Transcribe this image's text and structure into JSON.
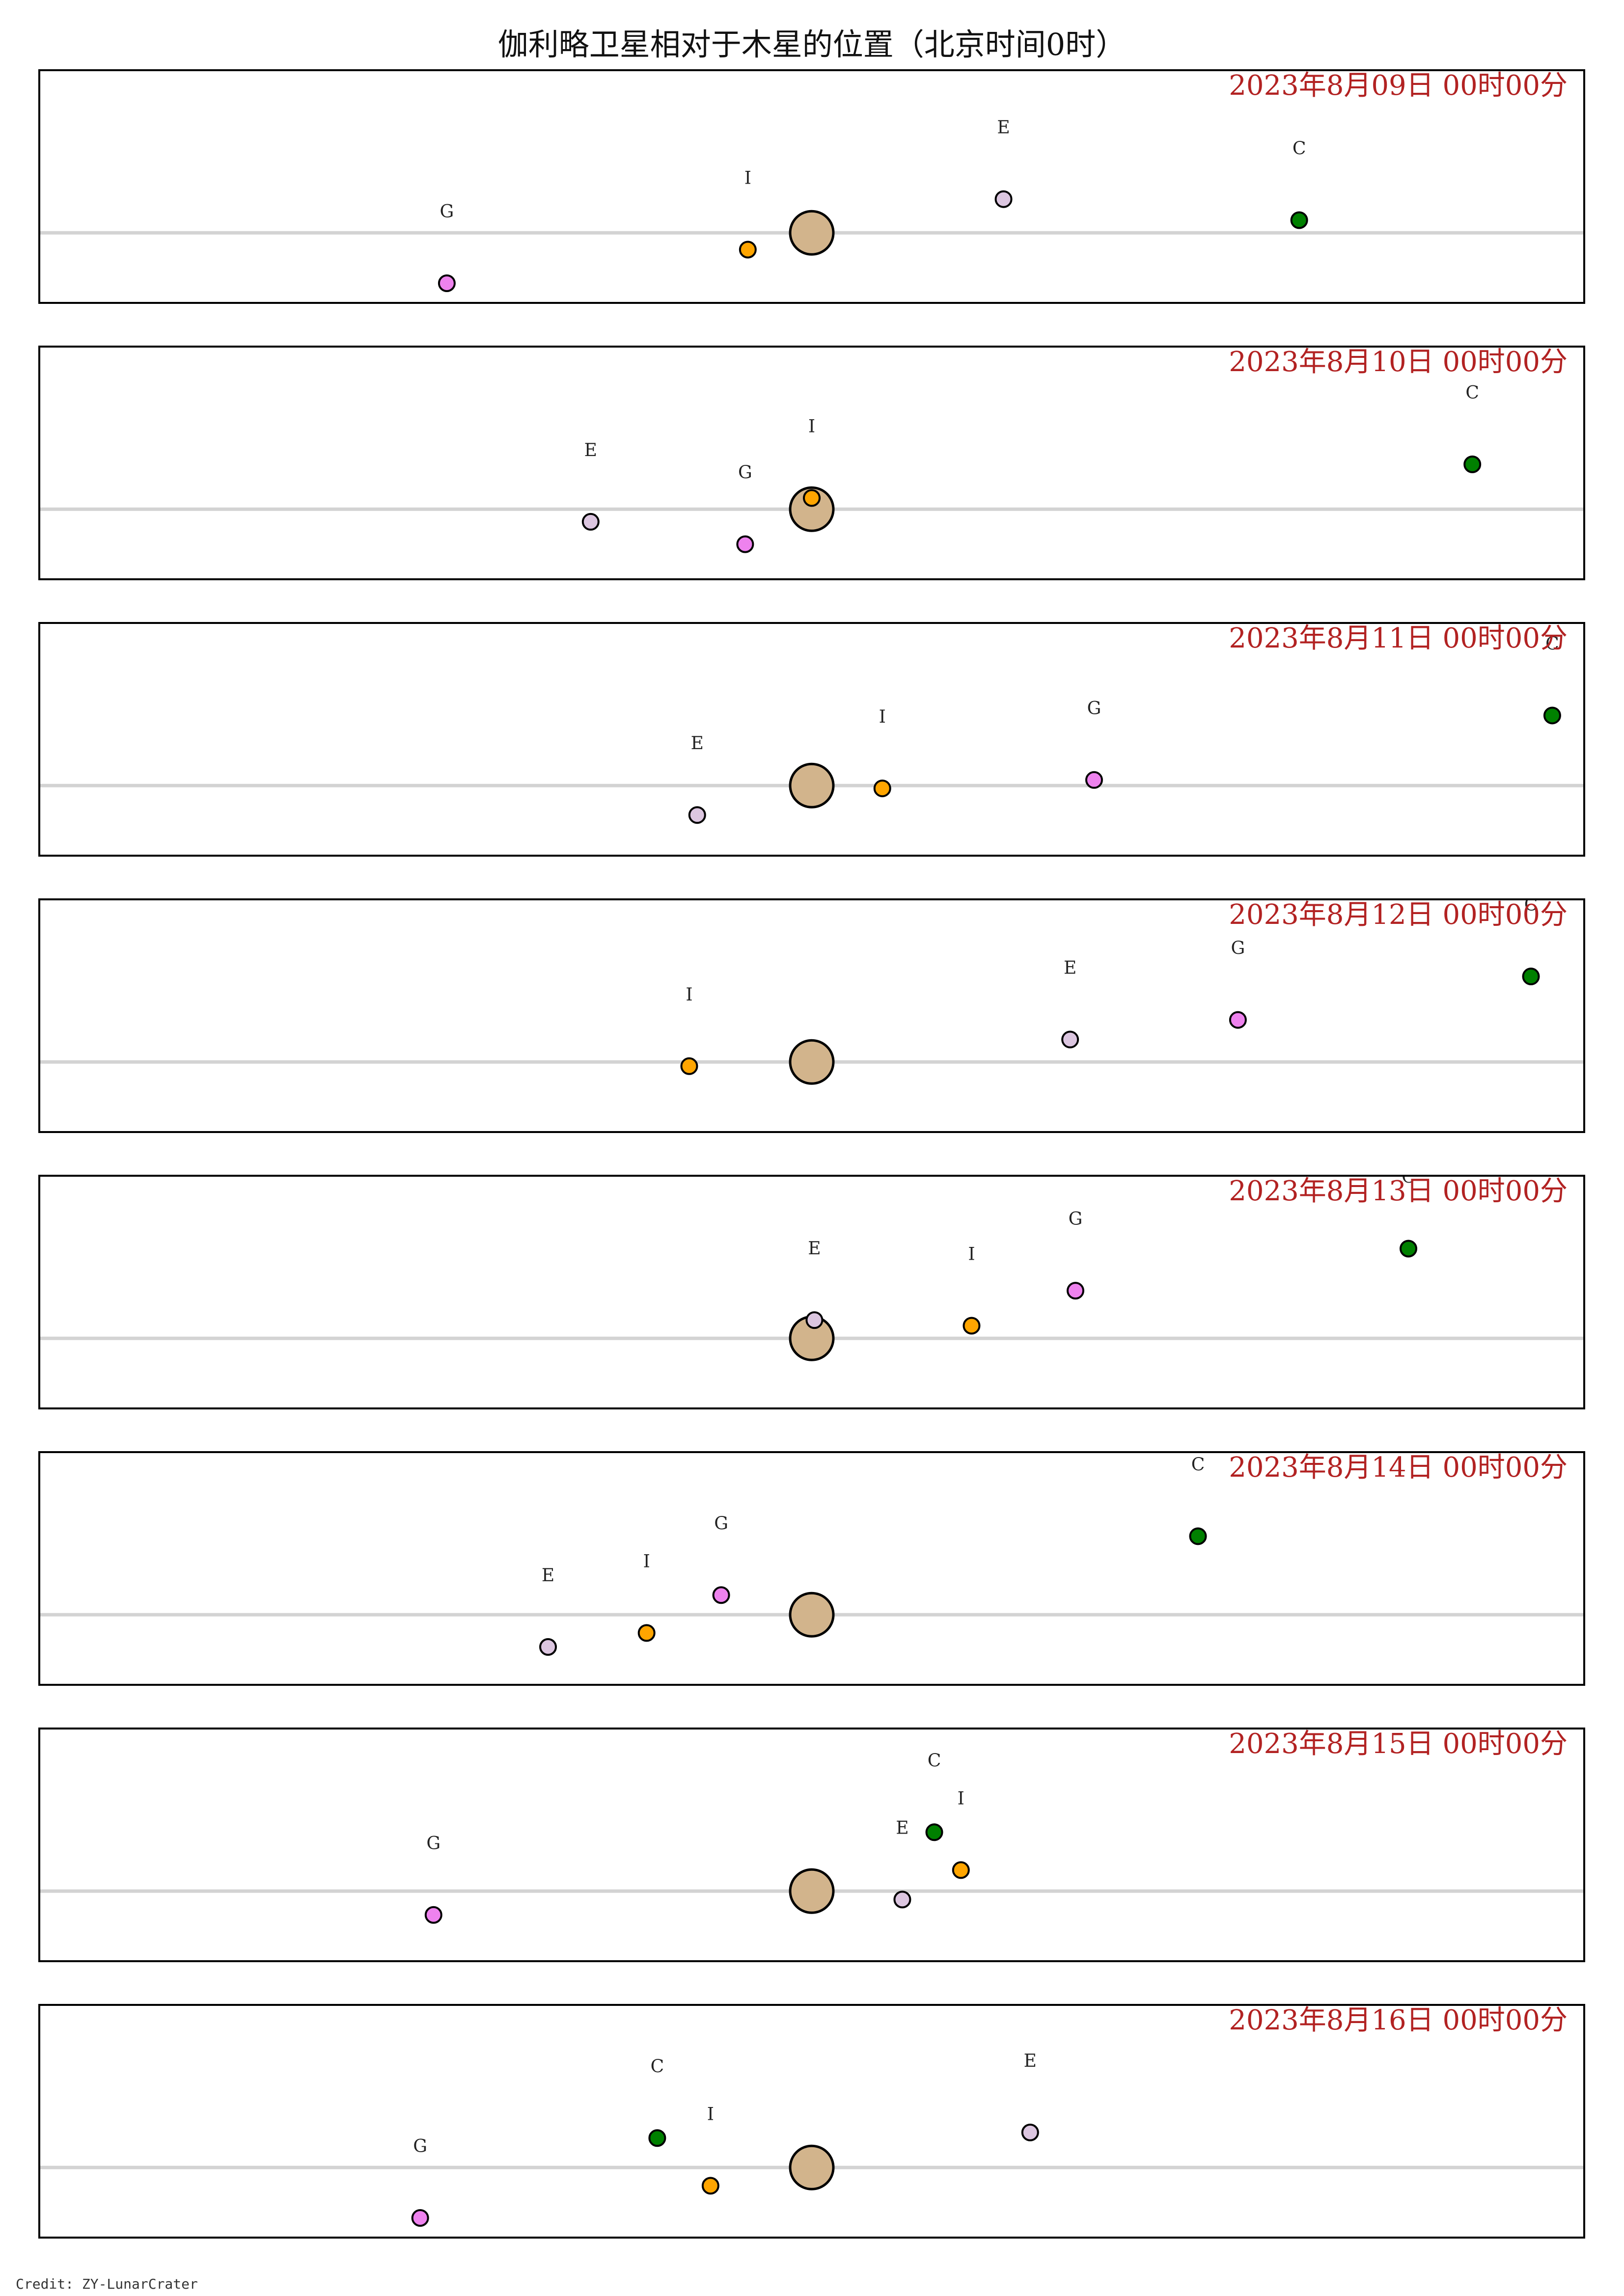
{
  "title": "伽利略卫星相对于木星的位置（北京时间0时）",
  "credit": "Credit: ZY-LunarCrater",
  "colors": {
    "Io": "#ffa500",
    "Europa": "#dcc6e0",
    "Ganymede": "#ee82ee",
    "Callisto": "#008000",
    "Jupiter": "#d2b48c",
    "date_text": "#b22222",
    "axis_line": "#d3d3d3",
    "frame": "#000000"
  },
  "chart_data": {
    "type": "scatter",
    "description_units": "x: offset from Jupiter, east positive (arbitrary scale); y: vertical offset",
    "xlim": [
      -29,
      29
    ],
    "ylim": [
      -2.5,
      5.8
    ],
    "grid": false,
    "panels": [
      {
        "date_label": "2023年8月09日  00时00分",
        "moons": [
          {
            "label": "G",
            "name": "Ganymede",
            "x": -13.7,
            "y": -1.8
          },
          {
            "label": "I",
            "name": "Io",
            "x": -2.4,
            "y": -0.6
          },
          {
            "label": "E",
            "name": "Europa",
            "x": 7.2,
            "y": 1.2
          },
          {
            "label": "C",
            "name": "Callisto",
            "x": 18.3,
            "y": 0.45
          }
        ]
      },
      {
        "date_label": "2023年8月10日  00时00分",
        "moons": [
          {
            "label": "E",
            "name": "Europa",
            "x": -8.3,
            "y": -0.45
          },
          {
            "label": "G",
            "name": "Ganymede",
            "x": -2.5,
            "y": -1.25
          },
          {
            "label": "I",
            "name": "Io",
            "x": 0.0,
            "y": 0.4
          },
          {
            "label": "C",
            "name": "Callisto",
            "x": 24.8,
            "y": 1.6
          }
        ]
      },
      {
        "date_label": "2023年8月11日  00时00分",
        "moons": [
          {
            "label": "E",
            "name": "Europa",
            "x": -4.3,
            "y": -1.05
          },
          {
            "label": "I",
            "name": "Io",
            "x": 2.65,
            "y": -0.1
          },
          {
            "label": "G",
            "name": "Ganymede",
            "x": 10.6,
            "y": 0.2
          },
          {
            "label": "C",
            "name": "Callisto",
            "x": 27.8,
            "y": 2.5
          }
        ]
      },
      {
        "date_label": "2023年8月12日  00时00分",
        "moons": [
          {
            "label": "I",
            "name": "Io",
            "x": -4.6,
            "y": -0.15
          },
          {
            "label": "E",
            "name": "Europa",
            "x": 9.7,
            "y": 0.8
          },
          {
            "label": "G",
            "name": "Ganymede",
            "x": 16.0,
            "y": 1.5
          },
          {
            "label": "C",
            "name": "Callisto",
            "x": 27.0,
            "y": 3.05
          }
        ]
      },
      {
        "date_label": "2023年8月13日  00时00分",
        "moons": [
          {
            "label": "E",
            "name": "Europa",
            "x": 0.1,
            "y": 0.65
          },
          {
            "label": "I",
            "name": "Io",
            "x": 6.0,
            "y": 0.45
          },
          {
            "label": "G",
            "name": "Ganymede",
            "x": 9.9,
            "y": 1.7
          },
          {
            "label": "C",
            "name": "Callisto",
            "x": 22.4,
            "y": 3.2
          }
        ]
      },
      {
        "date_label": "2023年8月14日  00时00分",
        "moons": [
          {
            "label": "E",
            "name": "Europa",
            "x": -9.9,
            "y": -1.15
          },
          {
            "label": "I",
            "name": "Io",
            "x": -6.2,
            "y": -0.65
          },
          {
            "label": "G",
            "name": "Ganymede",
            "x": -3.4,
            "y": 0.7
          },
          {
            "label": "C",
            "name": "Callisto",
            "x": 14.5,
            "y": 2.8
          }
        ]
      },
      {
        "date_label": "2023年8月15日  00时00分",
        "moons": [
          {
            "label": "G",
            "name": "Ganymede",
            "x": -14.2,
            "y": -0.85
          },
          {
            "label": "E",
            "name": "Europa",
            "x": 3.4,
            "y": -0.3
          },
          {
            "label": "C",
            "name": "Callisto",
            "x": 4.6,
            "y": 2.1
          },
          {
            "label": "I",
            "name": "Io",
            "x": 5.6,
            "y": 0.75
          }
        ]
      },
      {
        "date_label": "2023年8月16日  00时00分",
        "moons": [
          {
            "label": "G",
            "name": "Ganymede",
            "x": -14.7,
            "y": -1.8
          },
          {
            "label": "C",
            "name": "Callisto",
            "x": -5.8,
            "y": 1.05
          },
          {
            "label": "I",
            "name": "Io",
            "x": -3.8,
            "y": -0.65
          },
          {
            "label": "E",
            "name": "Europa",
            "x": 8.2,
            "y": 1.25
          }
        ]
      }
    ]
  }
}
